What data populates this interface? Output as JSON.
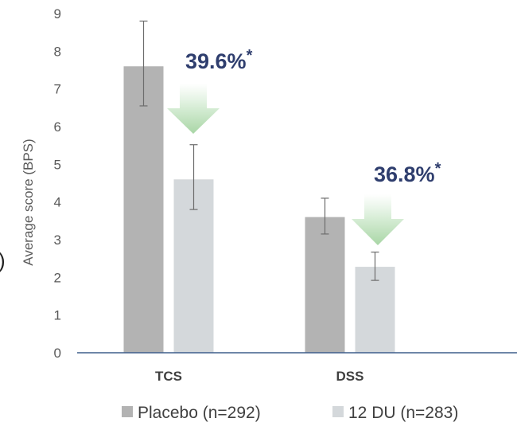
{
  "chart_data": {
    "type": "bar",
    "categories": [
      "TCS",
      "DSS"
    ],
    "ylabel": "Average score (BPS)",
    "ylim": [
      0,
      9
    ],
    "yticks": [
      "0",
      "1",
      "2",
      "3",
      "4",
      "5",
      "6",
      "7",
      "8",
      "9"
    ],
    "grid": false,
    "legend_position": "bottom",
    "series": [
      {
        "name": "Placebo (n=292)",
        "color": "#b3b3b3",
        "values": [
          7.6,
          3.6
        ],
        "error_low": [
          6.55,
          3.15
        ],
        "error_high": [
          8.8,
          4.1
        ]
      },
      {
        "name": "12 DU (n=283)",
        "color": "#d4d8db",
        "values": [
          4.6,
          2.28
        ],
        "error_low": [
          3.8,
          1.92
        ],
        "error_high": [
          5.52,
          2.67
        ]
      }
    ],
    "annotations": [
      {
        "category": "TCS",
        "text": "39.6%",
        "marker": "*"
      },
      {
        "category": "DSS",
        "text": "36.8%",
        "marker": "*"
      }
    ],
    "arrow_color": "#c8e4c6",
    "axis_color": "#3f5e8c"
  },
  "edge_fragment": ")"
}
